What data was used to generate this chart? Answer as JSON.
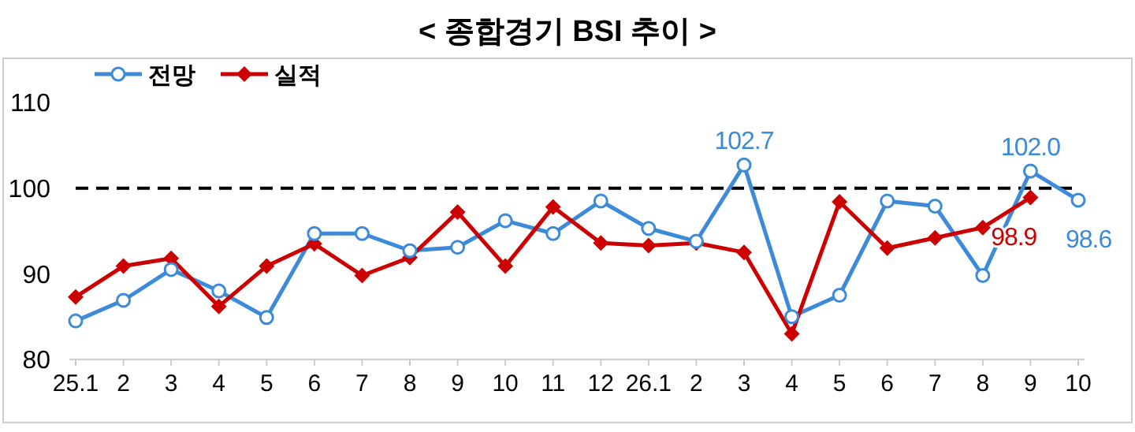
{
  "chart_data": {
    "type": "line",
    "title": "< 종합경기 BSI 추이 >",
    "categories": [
      "25.1",
      "2",
      "3",
      "4",
      "5",
      "6",
      "7",
      "8",
      "9",
      "10",
      "11",
      "12",
      "26.1",
      "2",
      "3",
      "4",
      "5",
      "6",
      "7",
      "8",
      "9",
      "10"
    ],
    "series": [
      {
        "name": "전망",
        "color": "#3c8ad8",
        "marker": "circle",
        "values": [
          84.5,
          86.9,
          90.5,
          88.0,
          84.9,
          94.7,
          94.7,
          92.7,
          93.1,
          96.2,
          94.7,
          98.5,
          95.3,
          93.8,
          102.7,
          85.0,
          87.5,
          98.5,
          97.9,
          89.8,
          102.0,
          98.6
        ],
        "value_labels": [
          null,
          null,
          null,
          null,
          null,
          null,
          null,
          null,
          null,
          null,
          null,
          null,
          null,
          null,
          "102.7",
          null,
          null,
          null,
          null,
          null,
          "102.0",
          "98.6"
        ]
      },
      {
        "name": "실적",
        "color": "#cc0000",
        "marker": "diamond",
        "values": [
          87.3,
          90.9,
          91.8,
          86.2,
          90.9,
          93.5,
          89.8,
          91.9,
          97.2,
          90.9,
          97.8,
          93.6,
          93.3,
          93.6,
          92.5,
          83.0,
          98.4,
          93.0,
          94.2,
          95.4,
          98.9,
          null
        ],
        "value_labels": [
          null,
          null,
          null,
          null,
          null,
          null,
          null,
          null,
          null,
          null,
          null,
          null,
          null,
          null,
          null,
          null,
          null,
          null,
          null,
          null,
          "98.9",
          null
        ]
      }
    ],
    "ylim": [
      80,
      110
    ],
    "yticks": [
      80,
      90,
      100,
      110
    ],
    "grid": false,
    "legend": "top left",
    "ref_lines": [
      {
        "axis": "y",
        "value": 100,
        "color": "#000000",
        "line_style": "dashed"
      }
    ]
  }
}
